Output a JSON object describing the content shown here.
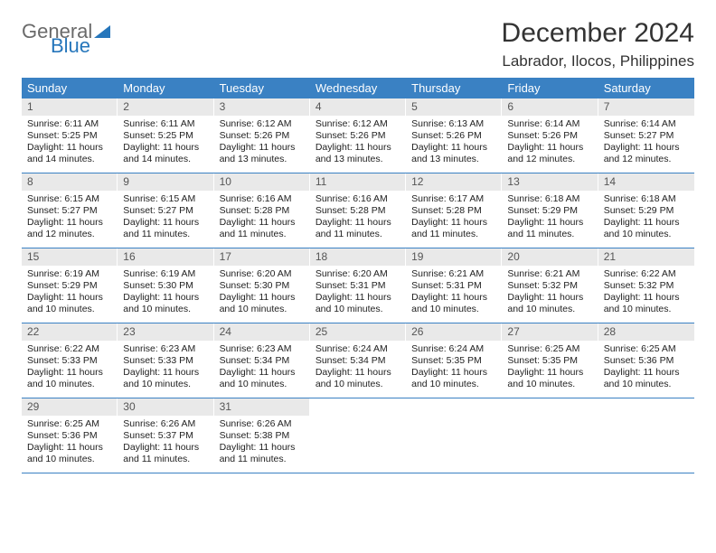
{
  "logo": {
    "text1": "General",
    "text2": "Blue"
  },
  "title": "December 2024",
  "location": "Labrador, Ilocos, Philippines",
  "colors": {
    "header_blue": "#3a81c3",
    "daynum_bg": "#e9e9e9",
    "logo_gray": "#6a6a6a",
    "logo_blue": "#2676bb"
  },
  "day_names": [
    "Sunday",
    "Monday",
    "Tuesday",
    "Wednesday",
    "Thursday",
    "Friday",
    "Saturday"
  ],
  "weeks": [
    [
      {
        "n": "1",
        "sr": "6:11 AM",
        "ss": "5:25 PM",
        "dl": "11 hours and 14 minutes."
      },
      {
        "n": "2",
        "sr": "6:11 AM",
        "ss": "5:25 PM",
        "dl": "11 hours and 14 minutes."
      },
      {
        "n": "3",
        "sr": "6:12 AM",
        "ss": "5:26 PM",
        "dl": "11 hours and 13 minutes."
      },
      {
        "n": "4",
        "sr": "6:12 AM",
        "ss": "5:26 PM",
        "dl": "11 hours and 13 minutes."
      },
      {
        "n": "5",
        "sr": "6:13 AM",
        "ss": "5:26 PM",
        "dl": "11 hours and 13 minutes."
      },
      {
        "n": "6",
        "sr": "6:14 AM",
        "ss": "5:26 PM",
        "dl": "11 hours and 12 minutes."
      },
      {
        "n": "7",
        "sr": "6:14 AM",
        "ss": "5:27 PM",
        "dl": "11 hours and 12 minutes."
      }
    ],
    [
      {
        "n": "8",
        "sr": "6:15 AM",
        "ss": "5:27 PM",
        "dl": "11 hours and 12 minutes."
      },
      {
        "n": "9",
        "sr": "6:15 AM",
        "ss": "5:27 PM",
        "dl": "11 hours and 11 minutes."
      },
      {
        "n": "10",
        "sr": "6:16 AM",
        "ss": "5:28 PM",
        "dl": "11 hours and 11 minutes."
      },
      {
        "n": "11",
        "sr": "6:16 AM",
        "ss": "5:28 PM",
        "dl": "11 hours and 11 minutes."
      },
      {
        "n": "12",
        "sr": "6:17 AM",
        "ss": "5:28 PM",
        "dl": "11 hours and 11 minutes."
      },
      {
        "n": "13",
        "sr": "6:18 AM",
        "ss": "5:29 PM",
        "dl": "11 hours and 11 minutes."
      },
      {
        "n": "14",
        "sr": "6:18 AM",
        "ss": "5:29 PM",
        "dl": "11 hours and 10 minutes."
      }
    ],
    [
      {
        "n": "15",
        "sr": "6:19 AM",
        "ss": "5:29 PM",
        "dl": "11 hours and 10 minutes."
      },
      {
        "n": "16",
        "sr": "6:19 AM",
        "ss": "5:30 PM",
        "dl": "11 hours and 10 minutes."
      },
      {
        "n": "17",
        "sr": "6:20 AM",
        "ss": "5:30 PM",
        "dl": "11 hours and 10 minutes."
      },
      {
        "n": "18",
        "sr": "6:20 AM",
        "ss": "5:31 PM",
        "dl": "11 hours and 10 minutes."
      },
      {
        "n": "19",
        "sr": "6:21 AM",
        "ss": "5:31 PM",
        "dl": "11 hours and 10 minutes."
      },
      {
        "n": "20",
        "sr": "6:21 AM",
        "ss": "5:32 PM",
        "dl": "11 hours and 10 minutes."
      },
      {
        "n": "21",
        "sr": "6:22 AM",
        "ss": "5:32 PM",
        "dl": "11 hours and 10 minutes."
      }
    ],
    [
      {
        "n": "22",
        "sr": "6:22 AM",
        "ss": "5:33 PM",
        "dl": "11 hours and 10 minutes."
      },
      {
        "n": "23",
        "sr": "6:23 AM",
        "ss": "5:33 PM",
        "dl": "11 hours and 10 minutes."
      },
      {
        "n": "24",
        "sr": "6:23 AM",
        "ss": "5:34 PM",
        "dl": "11 hours and 10 minutes."
      },
      {
        "n": "25",
        "sr": "6:24 AM",
        "ss": "5:34 PM",
        "dl": "11 hours and 10 minutes."
      },
      {
        "n": "26",
        "sr": "6:24 AM",
        "ss": "5:35 PM",
        "dl": "11 hours and 10 minutes."
      },
      {
        "n": "27",
        "sr": "6:25 AM",
        "ss": "5:35 PM",
        "dl": "11 hours and 10 minutes."
      },
      {
        "n": "28",
        "sr": "6:25 AM",
        "ss": "5:36 PM",
        "dl": "11 hours and 10 minutes."
      }
    ],
    [
      {
        "n": "29",
        "sr": "6:25 AM",
        "ss": "5:36 PM",
        "dl": "11 hours and 10 minutes."
      },
      {
        "n": "30",
        "sr": "6:26 AM",
        "ss": "5:37 PM",
        "dl": "11 hours and 11 minutes."
      },
      {
        "n": "31",
        "sr": "6:26 AM",
        "ss": "5:38 PM",
        "dl": "11 hours and 11 minutes."
      },
      null,
      null,
      null,
      null
    ]
  ],
  "labels": {
    "sunrise": "Sunrise:",
    "sunset": "Sunset:",
    "daylight": "Daylight:"
  }
}
